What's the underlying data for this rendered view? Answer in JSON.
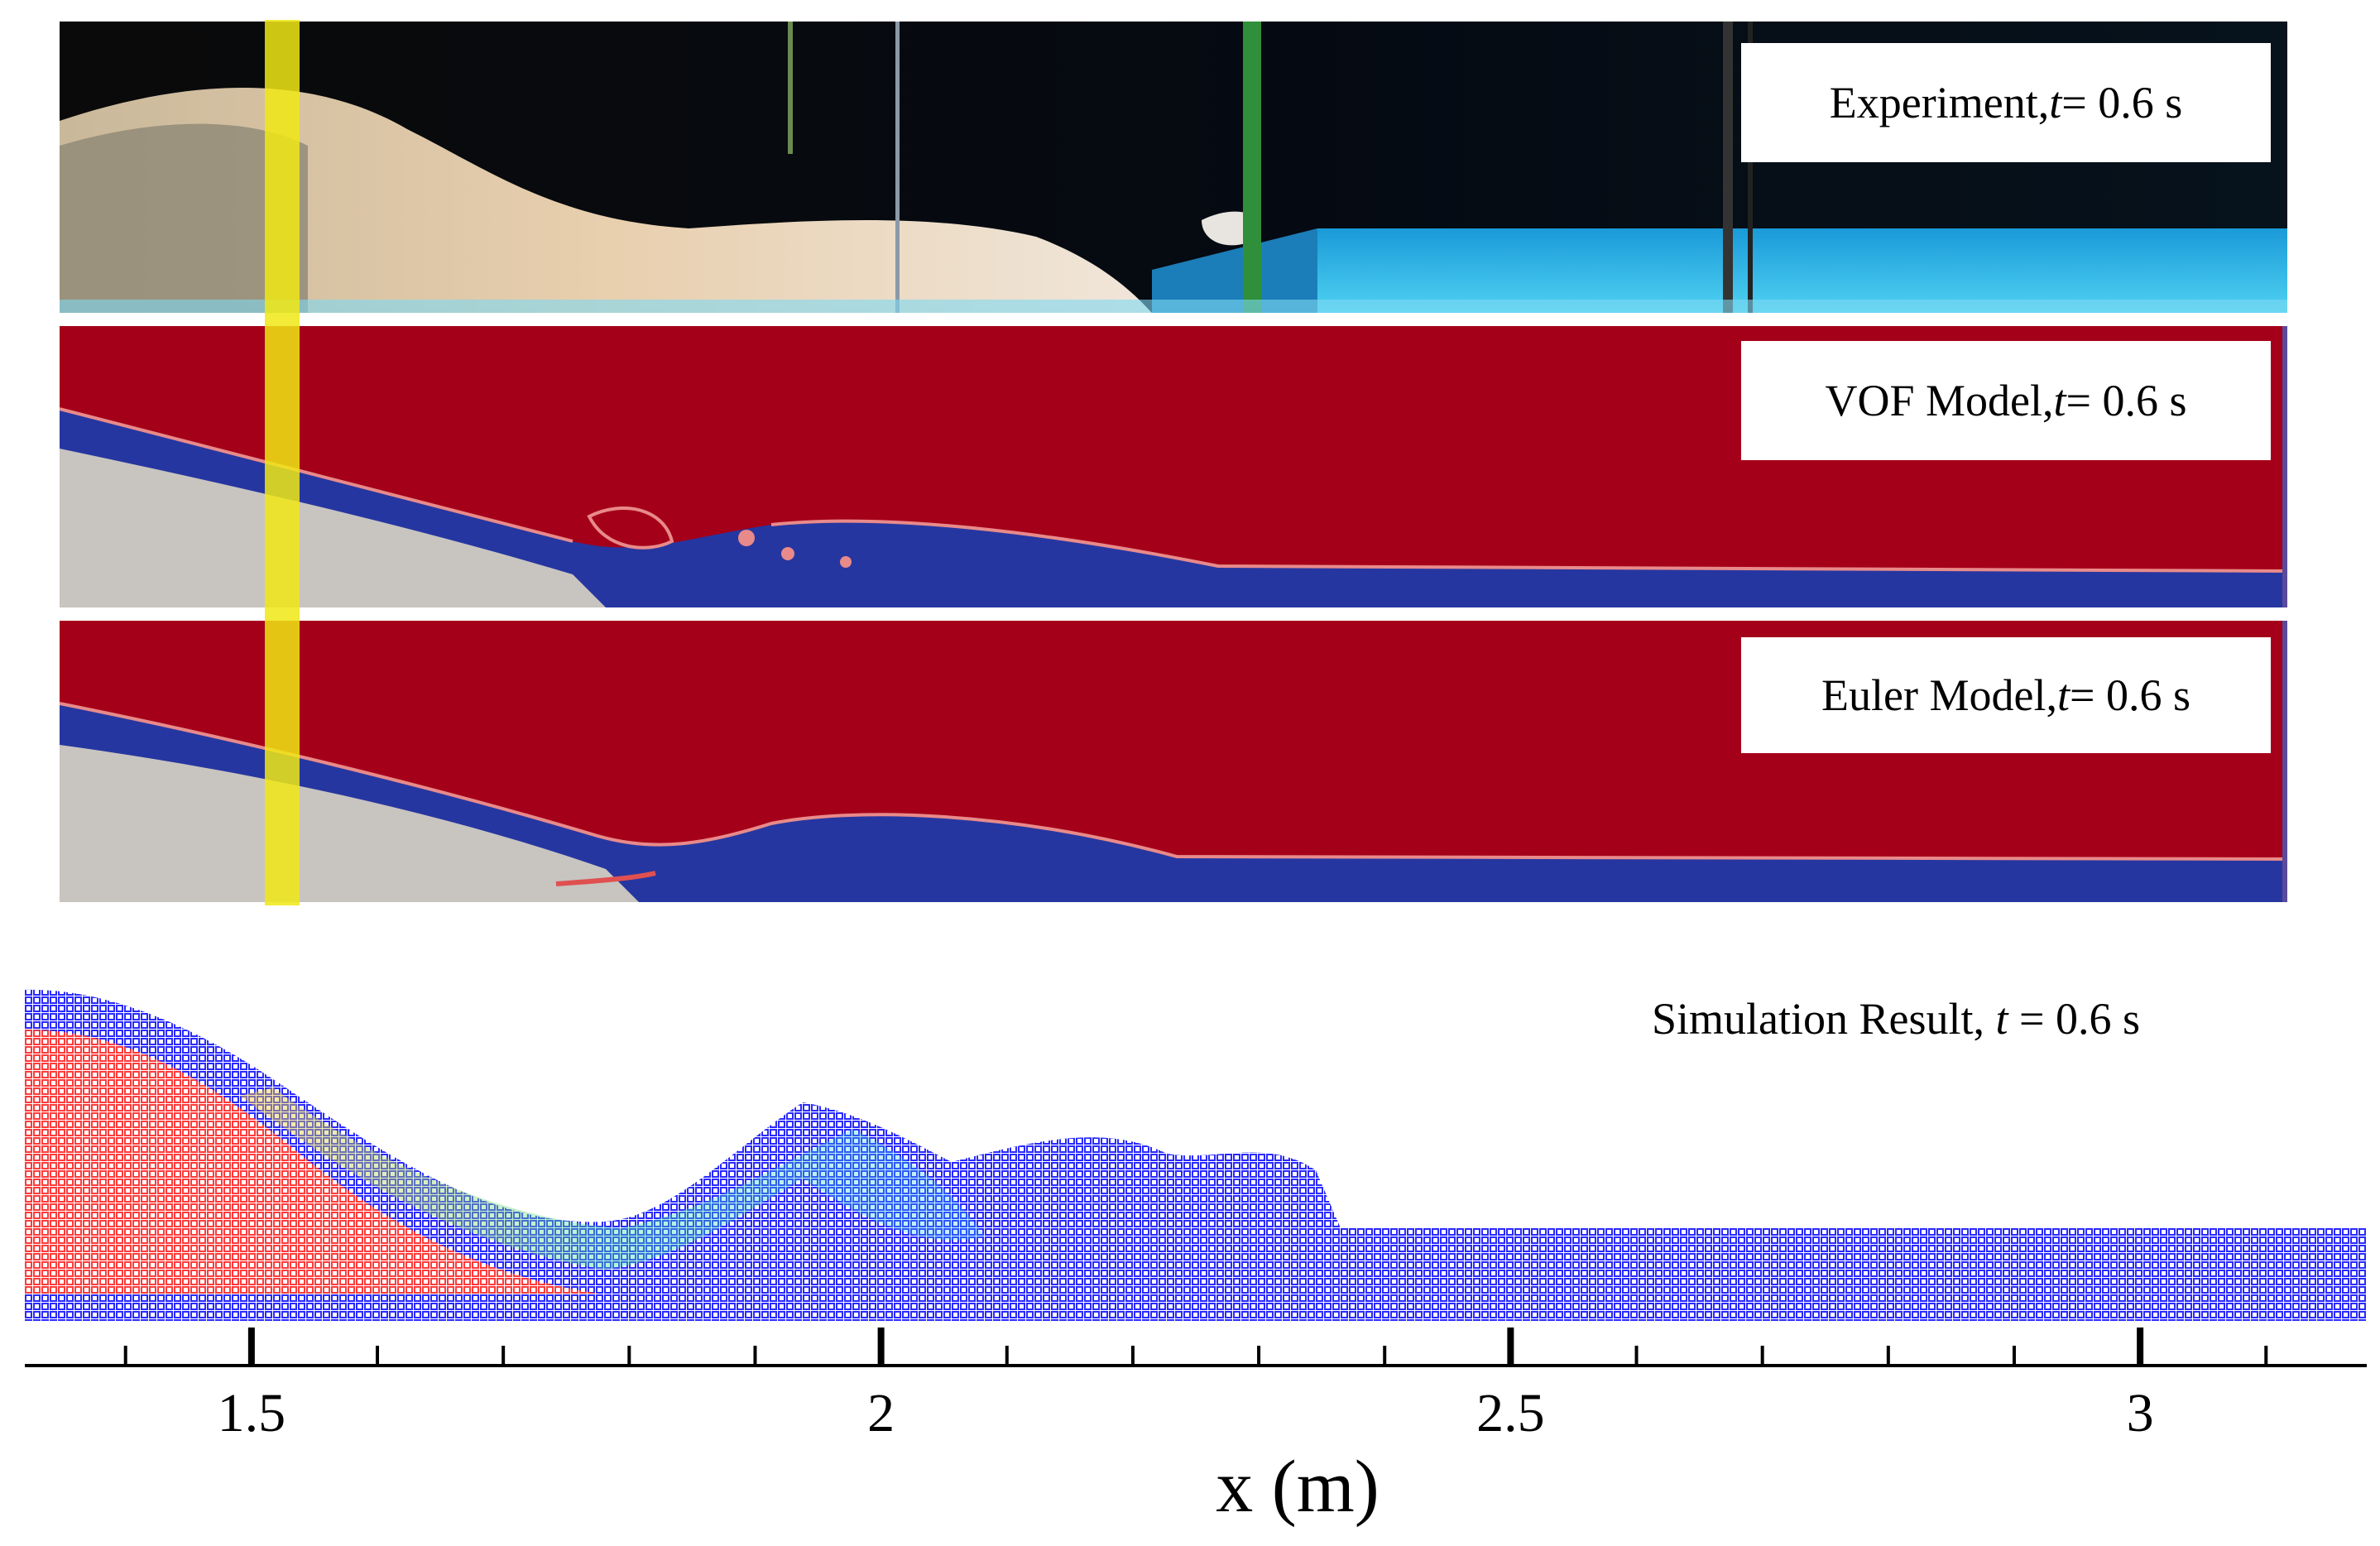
{
  "figure": {
    "panels": [
      {
        "id": "experiment",
        "label_prefix": "Experiment, ",
        "label_var": "t",
        "label_value": " = 0.6 s"
      },
      {
        "id": "vof",
        "label_prefix": "VOF Model, ",
        "label_var": "t",
        "label_value": " = 0.6 s"
      },
      {
        "id": "euler",
        "label_prefix": "Euler Model, ",
        "label_var": "t",
        "label_value": " = 0.6 s"
      },
      {
        "id": "simulation",
        "label_prefix": "Simulation Result, ",
        "label_var": "t",
        "label_value": " = 0.6 s"
      }
    ],
    "axis": {
      "title": "x (m)",
      "min": 1.32,
      "max": 3.18,
      "major_ticks": [
        "1.5",
        "2",
        "2.5",
        "3"
      ],
      "major_values": [
        1.5,
        2,
        2.5,
        3
      ],
      "minor_step": 0.1
    },
    "colors": {
      "air": "#a50019",
      "water": "#2636a0",
      "sediment": "#c8c4c0",
      "interface": "#e88a8a",
      "particle_blue": "#2a2aff",
      "particle_red": "#ff3b3b",
      "marker": "#f0e814"
    }
  }
}
